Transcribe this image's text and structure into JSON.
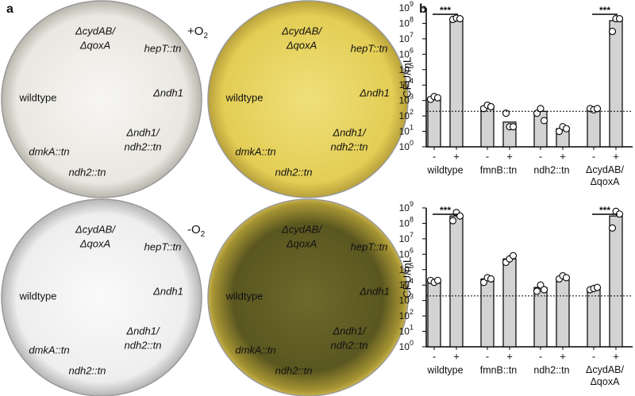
{
  "panel_a": {
    "letter": "a",
    "conditions": [
      {
        "text": "+O",
        "sub": "2"
      },
      {
        "text": "-O",
        "sub": "2"
      }
    ],
    "plates": [
      {
        "fill": "light",
        "labels": [
          {
            "text": "ΔcydAB/",
            "color": "#3a3acc"
          },
          {
            "text": "ΔqoxA",
            "color": "#3a3acc"
          },
          {
            "text": "hepT::tn",
            "color": "#3a3acc"
          },
          {
            "text": "wildtype",
            "color": "#111111"
          },
          {
            "text": "Δndh1",
            "color": "#3a3acc"
          },
          {
            "text": "dmkA::tn",
            "color": "#d01c3c"
          },
          {
            "text": "Δndh1/",
            "color": "#3a3acc"
          },
          {
            "text": "ndh2::tn",
            "color": "#d01c3c"
          },
          {
            "text": "ndh2::tn",
            "color": "#d01c3c"
          }
        ]
      },
      {
        "fill": "yellow",
        "labels": [
          {
            "text": "ΔcydAB/",
            "color": "#3a3acc"
          },
          {
            "text": "ΔqoxA",
            "color": "#3a3acc"
          },
          {
            "text": "hepT::tn",
            "color": "#3a3acc"
          },
          {
            "text": "wildtype",
            "color": "#111111"
          },
          {
            "text": "Δndh1",
            "color": "#3a3acc"
          },
          {
            "text": "dmkA::tn",
            "color": "#d01c3c"
          },
          {
            "text": "Δndh1/",
            "color": "#3a3acc"
          },
          {
            "text": "ndh2::tn",
            "color": "#d01c3c"
          },
          {
            "text": "ndh2::tn",
            "color": "#d01c3c"
          }
        ]
      },
      {
        "fill": "white",
        "labels": [
          {
            "text": "ΔcydAB/",
            "color": "#3a3acc"
          },
          {
            "text": "ΔqoxA",
            "color": "#3a3acc"
          },
          {
            "text": "hepT::tn",
            "color": "#3a3acc"
          },
          {
            "text": "wildtype",
            "color": "#111111"
          },
          {
            "text": "Δndh1",
            "color": "#3a3acc"
          },
          {
            "text": "dmkA::tn",
            "color": "#d01c3c"
          },
          {
            "text": "Δndh1/",
            "color": "#3a3acc"
          },
          {
            "text": "ndh2::tn",
            "color": "#d01c3c"
          },
          {
            "text": "ndh2::tn",
            "color": "#d01c3c"
          }
        ]
      },
      {
        "fill": "dark",
        "labels": [
          {
            "text": "ΔcydAB/",
            "color": "#3a3acc"
          },
          {
            "text": "ΔqoxA",
            "color": "#3a3acc"
          },
          {
            "text": "hepT::tn",
            "color": "#3a3acc"
          },
          {
            "text": "wildtype",
            "color": "#111111"
          },
          {
            "text": "Δndh1",
            "color": "#3a3acc"
          },
          {
            "text": "dmkA::tn",
            "color": "#d01c3c"
          },
          {
            "text": "Δndh1/",
            "color": "#3a3acc"
          },
          {
            "text": "ndh2::tn",
            "color": "#d01c3c"
          },
          {
            "text": "ndh2::tn",
            "color": "#d01c3c"
          }
        ]
      }
    ]
  },
  "panel_b_letter": "b",
  "chart_data": [
    {
      "type": "bar",
      "y_label": "CFU/mL",
      "log_y": true,
      "ylim": [
        1,
        1000000000
      ],
      "yticks": [
        {
          "value": 1,
          "label": "10",
          "exponent": "0"
        },
        {
          "value": 10,
          "label": "10",
          "exponent": "1"
        },
        {
          "value": 100,
          "label": "10",
          "exponent": "2"
        },
        {
          "value": 1000,
          "label": "10",
          "exponent": "3"
        },
        {
          "value": 10000,
          "label": "10",
          "exponent": "4"
        },
        {
          "value": 100000,
          "label": "10",
          "exponent": "5"
        },
        {
          "value": 1000000,
          "label": "10",
          "exponent": "6"
        },
        {
          "value": 10000000,
          "label": "10",
          "exponent": "7"
        },
        {
          "value": 100000000,
          "label": "10",
          "exponent": "8"
        },
        {
          "value": 1000000000,
          "label": "10",
          "exponent": "9"
        }
      ],
      "categories": [
        "wildtype",
        "fmnB::tn",
        "ndh2::tn",
        "ΔcydAB/\nΔqoxA"
      ],
      "series": [
        {
          "name": "-",
          "color": "#d3d3d3",
          "values": [
            1500,
            400,
            200,
            300
          ],
          "points": [
            [
              1200,
              1800,
              1500
            ],
            [
              300,
              500,
              400
            ],
            [
              150,
              300,
              50
            ],
            [
              300,
              250,
              300
            ]
          ]
        },
        {
          "name": "+",
          "color": "#d3d3d3",
          "values": [
            200000000,
            40,
            15,
            150000000
          ],
          "points": [
            [
              180000000,
              220000000,
              200000000
            ],
            [
              150,
              20,
              20
            ],
            [
              10,
              20,
              15
            ],
            [
              30000000,
              200000000,
              200000000
            ]
          ]
        }
      ],
      "reference_line": 200,
      "significance": [
        {
          "category": "wildtype",
          "label": "***"
        },
        {
          "category": "ΔcydAB/\nΔqoxA",
          "label": "***"
        }
      ]
    },
    {
      "type": "bar",
      "y_label": "CFU/mL",
      "log_y": true,
      "ylim": [
        1,
        1000000000
      ],
      "yticks": [
        {
          "value": 1,
          "label": "10",
          "exponent": "0"
        },
        {
          "value": 10,
          "label": "10",
          "exponent": "1"
        },
        {
          "value": 100,
          "label": "10",
          "exponent": "2"
        },
        {
          "value": 1000,
          "label": "10",
          "exponent": "3"
        },
        {
          "value": 10000,
          "label": "10",
          "exponent": "4"
        },
        {
          "value": 100000,
          "label": "10",
          "exponent": "5"
        },
        {
          "value": 1000000,
          "label": "10",
          "exponent": "6"
        },
        {
          "value": 10000000,
          "label": "10",
          "exponent": "7"
        },
        {
          "value": 100000000,
          "label": "10",
          "exponent": "8"
        },
        {
          "value": 1000000000,
          "label": "10",
          "exponent": "9"
        }
      ],
      "categories": [
        "wildtype",
        "fmnB::tn",
        "ndh2::tn",
        "ΔcydAB/\nΔqoxA"
      ],
      "series": [
        {
          "name": "-",
          "color": "#d3d3d3",
          "values": [
            20000,
            25000,
            7000,
            6000
          ],
          "points": [
            [
              20000,
              15000,
              20000
            ],
            [
              15000,
              30000,
              25000
            ],
            [
              4000,
              10000,
              5000
            ],
            [
              5000,
              6000,
              7000
            ]
          ]
        },
        {
          "name": "+",
          "color": "#d3d3d3",
          "values": [
            300000000,
            500000,
            30000,
            300000000
          ],
          "points": [
            [
              150000000,
              500000000,
              300000000
            ],
            [
              300000,
              500000,
              800000
            ],
            [
              25000,
              40000,
              30000
            ],
            [
              50000000,
              600000000,
              400000000
            ]
          ]
        }
      ],
      "reference_line": 2000,
      "significance": [
        {
          "category": "wildtype",
          "label": "***"
        },
        {
          "category": "ΔcydAB/\nΔqoxA",
          "label": "***"
        }
      ]
    }
  ]
}
